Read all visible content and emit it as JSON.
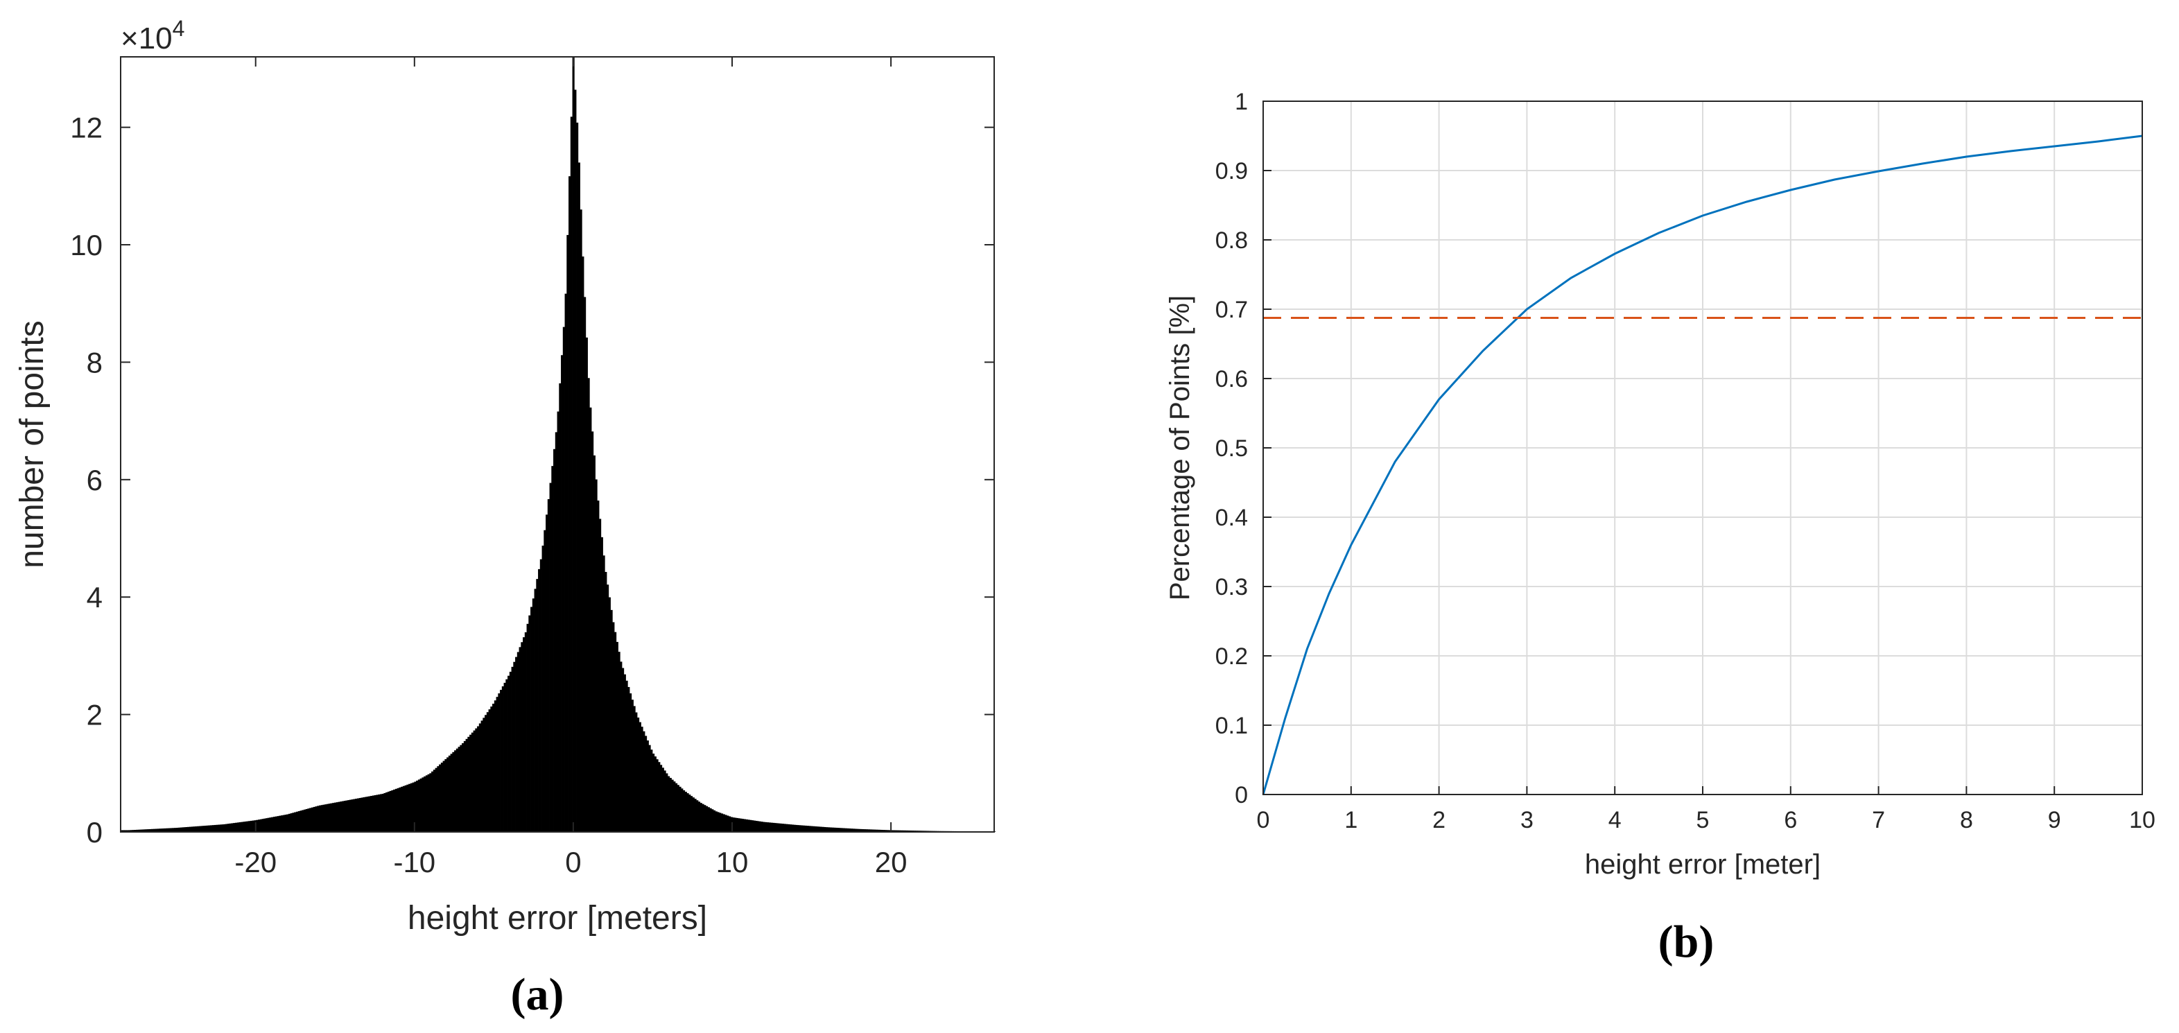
{
  "chart_data": [
    {
      "type": "bar",
      "panel_label": "(a)",
      "xlabel": "height error [meters]",
      "ylabel": "number of points",
      "y_exponent_label": "×10",
      "y_exponent_power": "4",
      "xlim": [
        -28.5,
        26.5
      ],
      "ylim": [
        0,
        132000
      ],
      "xticks": [
        -20,
        -10,
        0,
        10,
        20
      ],
      "yticks": [
        0,
        20000,
        40000,
        60000,
        80000,
        100000,
        120000
      ],
      "ytick_labels": [
        "0",
        "2",
        "4",
        "6",
        "8",
        "10",
        "12"
      ],
      "grid": false,
      "distribution": {
        "description": "histogram of height errors",
        "bin_centers": [
          -28,
          -25,
          -22,
          -20,
          -18,
          -16,
          -14,
          -12,
          -10,
          -9,
          -8,
          -7,
          -6,
          -5,
          -4,
          -3,
          -2.5,
          -2,
          -1.5,
          -1,
          -0.5,
          -0.2,
          0,
          0.3,
          0.6,
          1,
          1.5,
          2,
          2.5,
          3,
          4,
          5,
          6,
          7,
          8,
          9,
          10,
          12,
          14,
          16,
          18,
          20,
          23,
          26
        ],
        "counts": [
          300,
          700,
          1300,
          2000,
          3000,
          4500,
          5500,
          6500,
          8500,
          10000,
          12500,
          15000,
          18000,
          22000,
          27000,
          34000,
          40000,
          47000,
          58000,
          70000,
          90000,
          115000,
          132000,
          118000,
          98000,
          75000,
          58000,
          45000,
          36000,
          29000,
          20000,
          13500,
          9500,
          7000,
          5000,
          3500,
          2500,
          1700,
          1200,
          800,
          500,
          300,
          150,
          80
        ]
      },
      "bar_color": "#000000"
    },
    {
      "type": "line",
      "panel_label": "(b)",
      "xlabel": "height error [meter]",
      "ylabel": "Percentage of Points [%]",
      "xlim": [
        0,
        10
      ],
      "ylim": [
        0,
        1
      ],
      "xticks": [
        0,
        1,
        2,
        3,
        4,
        5,
        6,
        7,
        8,
        9,
        10
      ],
      "yticks": [
        0,
        0.1,
        0.2,
        0.3,
        0.4,
        0.5,
        0.6,
        0.7,
        0.8,
        0.9,
        1
      ],
      "ytick_labels": [
        "0",
        "0.1",
        "0.2",
        "0.3",
        "0.4",
        "0.5",
        "0.6",
        "0.7",
        "0.8",
        "0.9",
        "1"
      ],
      "grid": true,
      "series": [
        {
          "color": "#0072BD",
          "style": "solid",
          "x": [
            0,
            0.25,
            0.5,
            0.75,
            1,
            1.5,
            2,
            2.5,
            3,
            3.5,
            4,
            4.5,
            5,
            5.5,
            6,
            6.5,
            7,
            7.5,
            8,
            8.5,
            9,
            9.5,
            10
          ],
          "y": [
            0,
            0.11,
            0.21,
            0.29,
            0.36,
            0.48,
            0.57,
            0.64,
            0.7,
            0.745,
            0.78,
            0.81,
            0.835,
            0.855,
            0.872,
            0.887,
            0.899,
            0.91,
            0.92,
            0.928,
            0.935,
            0.942,
            0.95
          ]
        },
        {
          "color": "#D95319",
          "style": "dashed",
          "x": [
            0,
            10
          ],
          "y": [
            0.6875,
            0.6875
          ]
        }
      ]
    }
  ]
}
